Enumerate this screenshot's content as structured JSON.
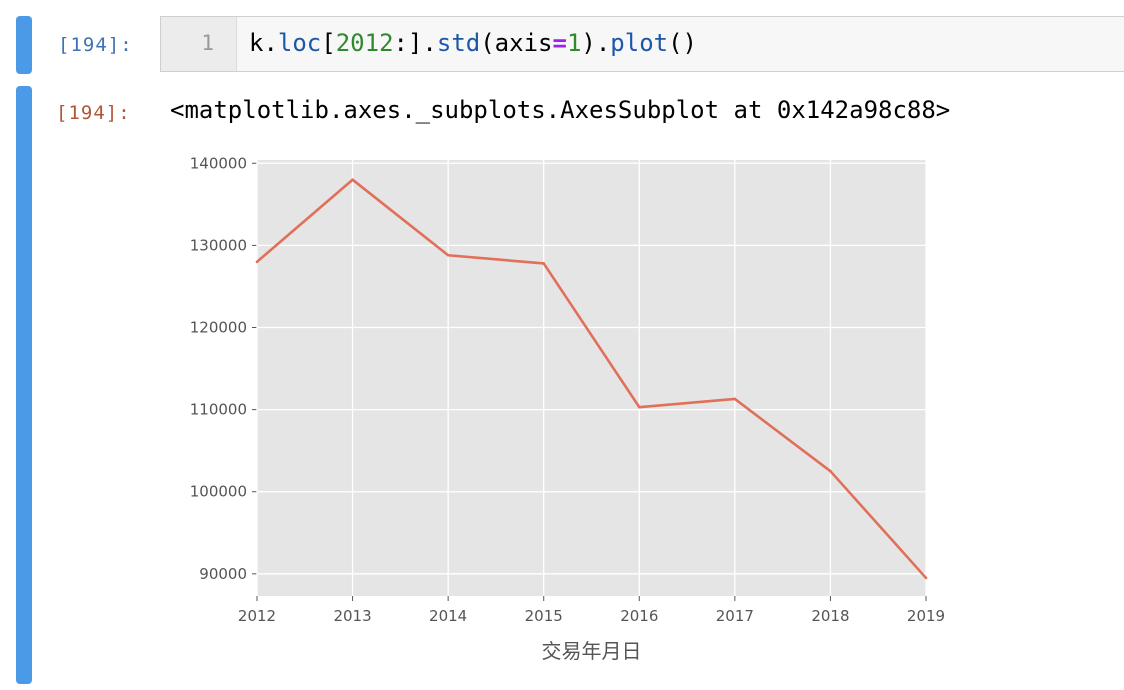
{
  "input_cell": {
    "prompt": "[194]:",
    "line_number": "1",
    "code_tokens": [
      {
        "text": "k.",
        "kind": "plain"
      },
      {
        "text": "loc",
        "kind": "attr"
      },
      {
        "text": "[",
        "kind": "plain"
      },
      {
        "text": "2012",
        "kind": "num"
      },
      {
        "text": ":].",
        "kind": "plain"
      },
      {
        "text": "std",
        "kind": "attr"
      },
      {
        "text": "(axis",
        "kind": "plain"
      },
      {
        "text": "=",
        "kind": "op"
      },
      {
        "text": "1",
        "kind": "num"
      },
      {
        "text": ").",
        "kind": "plain"
      },
      {
        "text": "plot",
        "kind": "attr"
      },
      {
        "text": "()",
        "kind": "plain"
      }
    ]
  },
  "output_cell": {
    "prompt": "[194]:",
    "text": "<matplotlib.axes._subplots.AxesSubplot at 0x142a98c88>"
  },
  "colors": {
    "cell_bar": "#4a9ae8",
    "plot_bg": "#e5e5e5",
    "grid": "#ffffff",
    "line": "#e0705a"
  },
  "chart_data": {
    "type": "line",
    "x": [
      2012,
      2013,
      2014,
      2015,
      2016,
      2017,
      2018,
      2019
    ],
    "series": [
      {
        "values": [
          128000,
          138000,
          128800,
          127800,
          110300,
          111300,
          102500,
          89500
        ]
      }
    ],
    "xticks": [
      "2012",
      "2013",
      "2014",
      "2015",
      "2016",
      "2017",
      "2018",
      "2019"
    ],
    "yticks": [
      "90000",
      "100000",
      "110000",
      "120000",
      "130000",
      "140000"
    ],
    "xlim": [
      2012,
      2019
    ],
    "ylim": [
      87300,
      140400
    ],
    "xlabel": "交易年月日",
    "ylabel": "",
    "title": "",
    "grid": true,
    "style": "ggplot"
  }
}
